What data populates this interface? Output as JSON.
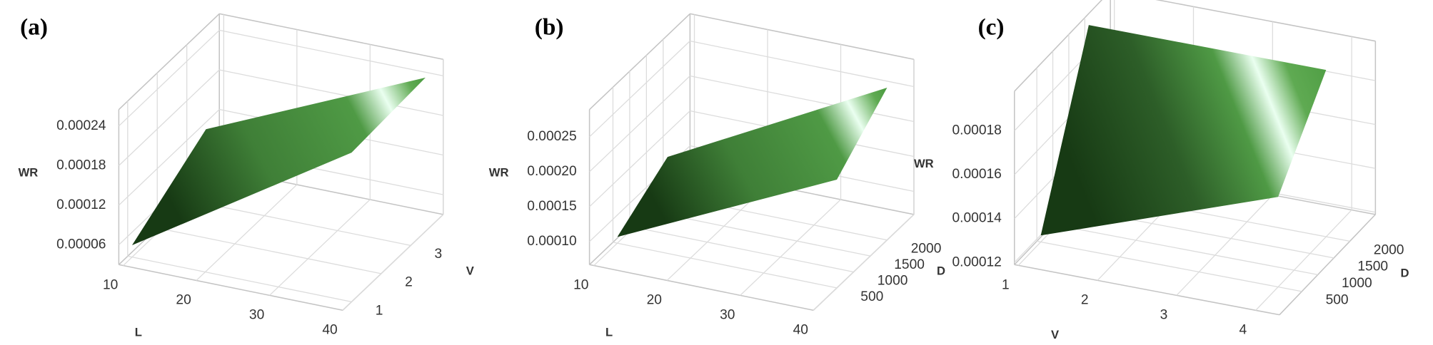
{
  "chart_data": [
    {
      "type": "surface3d",
      "title": "(a)",
      "xlabel": "L",
      "ylabel": "V",
      "zlabel": "WR",
      "color": "#3f7f37",
      "xlim": [
        9.4,
        40.0
      ],
      "xticks": [
        10,
        20,
        30,
        40
      ],
      "ylim": [
        0.7,
        4.1
      ],
      "yticks": [
        1,
        2,
        3
      ],
      "zlim": [
        3e-05,
        0.000265
      ],
      "zticks": [
        6e-05,
        0.00012,
        0.00018,
        0.00024
      ],
      "surface": {
        "x": [
          10,
          40
        ],
        "y": [
          1,
          3.5
        ],
        "z": [
          [
            4.8e-05,
            0.000117
          ],
          [
            0.000256,
            0.000263
          ]
        ]
      }
    },
    {
      "type": "surface3d",
      "title": "(b)",
      "xlabel": "L",
      "ylabel": "D",
      "zlabel": "WR",
      "color": "#3f7f37",
      "xlim": [
        9.4,
        40.0
      ],
      "xticks": [
        10,
        20,
        30,
        40
      ],
      "ylim": [
        -200,
        2800
      ],
      "yticks": [
        500,
        1000,
        1500,
        2000
      ],
      "zlim": [
        6.7e-05,
        0.000289
      ],
      "zticks": [
        {
          "value": 0.0001,
          "label": "0.00010"
        },
        0.00015,
        {
          "value": 0.0002,
          "label": "0.00020"
        },
        0.00025
      ],
      "surface": {
        "x": [
          10,
          40
        ],
        "y": [
          500,
          2000
        ],
        "z": [
          [
            7.6e-05,
            0.000122
          ],
          [
            0.000222,
            0.000285
          ]
        ]
      }
    },
    {
      "type": "surface3d",
      "title": "(c)",
      "xlabel": "V",
      "ylabel": "D",
      "zlabel": "WR",
      "color": "#2d5e28",
      "xlim": [
        0.95,
        4.3
      ],
      "xticks": [
        1,
        2,
        3,
        4
      ],
      "ylim": [
        -200,
        2800
      ],
      "yticks": [
        500,
        1000,
        1500,
        2000
      ],
      "zlim": [
        0.000119,
        0.000198
      ],
      "zticks": [
        0.00012,
        0.00014,
        0.00016,
        0.00018
      ],
      "surface": {
        "x": [
          1,
          4
        ],
        "y": [
          500,
          2000
        ],
        "z": [
          [
            0.000122,
            0.000195
          ],
          [
            0.00016,
            0.000195
          ]
        ]
      }
    }
  ]
}
